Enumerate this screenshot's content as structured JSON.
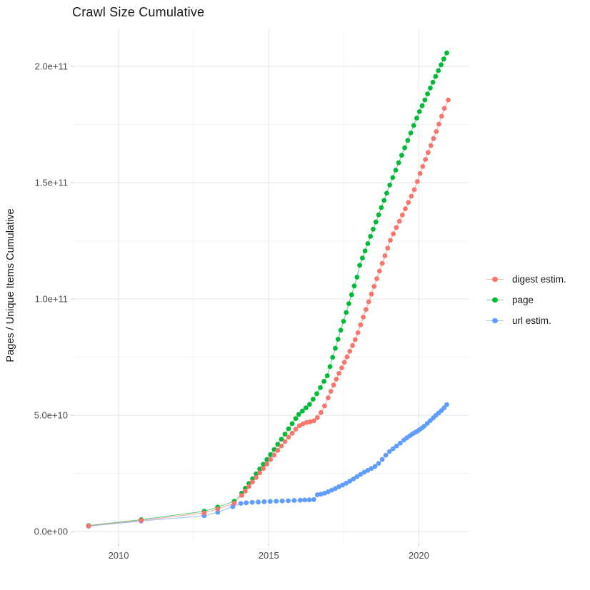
{
  "chart_data": {
    "type": "line",
    "title": "Crawl Size Cumulative",
    "xlabel": "",
    "ylabel": "Pages / Unique Items Cumulative",
    "grid": true,
    "legend_position": "right",
    "value_unit": "1e9 (billions); y tick 5.0e+10 corresponds to value 50",
    "xlim": [
      2008.5,
      2021.68
    ],
    "ylim_e9": [
      -5.2,
      216.3
    ],
    "x_ticks": [
      {
        "value": 2010,
        "label": "2010"
      },
      {
        "value": 2015,
        "label": "2015"
      },
      {
        "value": 2020,
        "label": "2020"
      }
    ],
    "x_minor_ticks": [
      2012.5,
      2017.5
    ],
    "y_ticks": [
      {
        "value_e9": 0,
        "label": "0.0e+00"
      },
      {
        "value_e9": 50,
        "label": "5.0e+10"
      },
      {
        "value_e9": 100,
        "label": "1.0e+11"
      },
      {
        "value_e9": 150,
        "label": "1.5e+11"
      },
      {
        "value_e9": 200,
        "label": "2.0e+11"
      }
    ],
    "y_minor_ticks_e9": [
      25,
      75,
      125,
      175
    ],
    "series": [
      {
        "name": "digest estim.",
        "color": "#F8766D",
        "points": [
          [
            2009.0,
            2.4
          ],
          [
            2010.75,
            4.8
          ],
          [
            2012.85,
            8.0
          ],
          [
            2013.3,
            9.7
          ],
          [
            2013.85,
            12.2
          ],
          [
            2014.1,
            15.5
          ],
          [
            2014.22,
            17.4
          ],
          [
            2014.34,
            19.4
          ],
          [
            2014.46,
            21.3
          ],
          [
            2014.58,
            23.2
          ],
          [
            2014.7,
            25.2
          ],
          [
            2014.82,
            27.1
          ],
          [
            2014.94,
            29.0
          ],
          [
            2015.06,
            31.0
          ],
          [
            2015.18,
            32.9
          ],
          [
            2015.3,
            34.9
          ],
          [
            2015.42,
            36.8
          ],
          [
            2015.54,
            38.7
          ],
          [
            2015.66,
            40.6
          ],
          [
            2015.78,
            42.3
          ],
          [
            2015.9,
            44.0
          ],
          [
            2016.02,
            45.5
          ],
          [
            2016.14,
            46.3
          ],
          [
            2016.26,
            46.9
          ],
          [
            2016.38,
            47.2
          ],
          [
            2016.5,
            47.6
          ],
          [
            2016.62,
            49.0
          ],
          [
            2016.74,
            51.2
          ],
          [
            2016.86,
            54.0
          ],
          [
            2016.98,
            57.5
          ],
          [
            2017.07,
            60.3
          ],
          [
            2017.16,
            63.0
          ],
          [
            2017.25,
            65.5
          ],
          [
            2017.34,
            68.0
          ],
          [
            2017.43,
            70.4
          ],
          [
            2017.52,
            72.8
          ],
          [
            2017.61,
            75.1
          ],
          [
            2017.7,
            77.5
          ],
          [
            2017.79,
            80.0
          ],
          [
            2017.88,
            82.5
          ],
          [
            2017.97,
            85.5
          ],
          [
            2018.06,
            88.9
          ],
          [
            2018.15,
            92.2
          ],
          [
            2018.24,
            95.5
          ],
          [
            2018.33,
            98.8
          ],
          [
            2018.42,
            102.1
          ],
          [
            2018.51,
            105.4
          ],
          [
            2018.6,
            108.7
          ],
          [
            2018.69,
            112.0
          ],
          [
            2018.78,
            115.3
          ],
          [
            2018.87,
            118.6
          ],
          [
            2018.96,
            121.9
          ],
          [
            2019.05,
            125.2
          ],
          [
            2019.15,
            128.0
          ],
          [
            2019.25,
            130.7
          ],
          [
            2019.35,
            133.4
          ],
          [
            2019.45,
            136.1
          ],
          [
            2019.55,
            138.8
          ],
          [
            2019.65,
            141.5
          ],
          [
            2019.75,
            144.2
          ],
          [
            2019.85,
            147.0
          ],
          [
            2019.95,
            150.5
          ],
          [
            2020.04,
            154.0
          ],
          [
            2020.13,
            157.0
          ],
          [
            2020.22,
            160.0
          ],
          [
            2020.31,
            163.0
          ],
          [
            2020.4,
            166.0
          ],
          [
            2020.49,
            169.0
          ],
          [
            2020.58,
            172.0
          ],
          [
            2020.67,
            175.2
          ],
          [
            2020.76,
            178.6
          ],
          [
            2020.85,
            182.0
          ],
          [
            2020.98,
            185.6
          ]
        ]
      },
      {
        "name": "page",
        "color": "#00BA38",
        "points": [
          [
            2009.0,
            2.6
          ],
          [
            2010.75,
            5.1
          ],
          [
            2012.85,
            8.7
          ],
          [
            2013.3,
            10.5
          ],
          [
            2013.85,
            13.0
          ],
          [
            2014.1,
            16.5
          ],
          [
            2014.22,
            18.6
          ],
          [
            2014.34,
            20.7
          ],
          [
            2014.46,
            22.7
          ],
          [
            2014.58,
            24.8
          ],
          [
            2014.7,
            26.9
          ],
          [
            2014.82,
            28.9
          ],
          [
            2014.94,
            31.0
          ],
          [
            2015.06,
            33.1
          ],
          [
            2015.18,
            35.3
          ],
          [
            2015.3,
            37.5
          ],
          [
            2015.42,
            39.7
          ],
          [
            2015.54,
            41.9
          ],
          [
            2015.66,
            44.2
          ],
          [
            2015.78,
            46.4
          ],
          [
            2015.9,
            48.6
          ],
          [
            2016.0,
            50.4
          ],
          [
            2016.12,
            51.8
          ],
          [
            2016.24,
            53.2
          ],
          [
            2016.36,
            54.7
          ],
          [
            2016.48,
            56.9
          ],
          [
            2016.6,
            59.3
          ],
          [
            2016.72,
            61.9
          ],
          [
            2016.84,
            64.6
          ],
          [
            2016.95,
            67.0
          ],
          [
            2017.04,
            70.9
          ],
          [
            2017.13,
            74.9
          ],
          [
            2017.22,
            78.8
          ],
          [
            2017.31,
            82.7
          ],
          [
            2017.4,
            86.6
          ],
          [
            2017.49,
            90.4
          ],
          [
            2017.58,
            94.2
          ],
          [
            2017.67,
            98.0
          ],
          [
            2017.76,
            101.8
          ],
          [
            2017.85,
            105.6
          ],
          [
            2017.94,
            109.4
          ],
          [
            2018.03,
            114.5
          ],
          [
            2018.12,
            117.6
          ],
          [
            2018.21,
            120.7
          ],
          [
            2018.3,
            123.8
          ],
          [
            2018.39,
            126.9
          ],
          [
            2018.48,
            130.0
          ],
          [
            2018.57,
            133.1
          ],
          [
            2018.66,
            136.2
          ],
          [
            2018.75,
            139.3
          ],
          [
            2018.84,
            142.4
          ],
          [
            2018.93,
            145.5
          ],
          [
            2019.03,
            149.0
          ],
          [
            2019.13,
            152.2
          ],
          [
            2019.23,
            155.4
          ],
          [
            2019.33,
            158.6
          ],
          [
            2019.43,
            161.8
          ],
          [
            2019.53,
            165.0
          ],
          [
            2019.63,
            168.2
          ],
          [
            2019.73,
            171.4
          ],
          [
            2019.83,
            174.6
          ],
          [
            2019.93,
            177.8
          ],
          [
            2020.02,
            180.6
          ],
          [
            2020.11,
            183.1
          ],
          [
            2020.2,
            185.6
          ],
          [
            2020.29,
            188.2
          ],
          [
            2020.38,
            190.7
          ],
          [
            2020.47,
            193.2
          ],
          [
            2020.56,
            195.7
          ],
          [
            2020.65,
            198.2
          ],
          [
            2020.74,
            200.7
          ],
          [
            2020.83,
            203.2
          ],
          [
            2020.93,
            205.8
          ]
        ]
      },
      {
        "name": "url estim.",
        "color": "#619CFF",
        "points": [
          [
            2009.0,
            2.3
          ],
          [
            2010.75,
            4.5
          ],
          [
            2012.85,
            6.8
          ],
          [
            2013.3,
            8.3
          ],
          [
            2013.8,
            10.7
          ],
          [
            2014.07,
            12.1
          ],
          [
            2014.25,
            12.35
          ],
          [
            2014.45,
            12.55
          ],
          [
            2014.65,
            12.7
          ],
          [
            2014.85,
            12.85
          ],
          [
            2015.05,
            12.95
          ],
          [
            2015.25,
            13.05
          ],
          [
            2015.45,
            13.15
          ],
          [
            2015.65,
            13.25
          ],
          [
            2015.85,
            13.35
          ],
          [
            2016.05,
            13.45
          ],
          [
            2016.2,
            13.55
          ],
          [
            2016.35,
            13.65
          ],
          [
            2016.5,
            13.75
          ],
          [
            2016.62,
            15.8
          ],
          [
            2016.74,
            16.1
          ],
          [
            2016.86,
            16.5
          ],
          [
            2016.98,
            17.1
          ],
          [
            2017.1,
            17.8
          ],
          [
            2017.22,
            18.5
          ],
          [
            2017.34,
            19.3
          ],
          [
            2017.46,
            20.0
          ],
          [
            2017.58,
            20.8
          ],
          [
            2017.7,
            21.7
          ],
          [
            2017.82,
            22.6
          ],
          [
            2017.94,
            23.6
          ],
          [
            2018.06,
            24.6
          ],
          [
            2018.18,
            25.5
          ],
          [
            2018.3,
            26.3
          ],
          [
            2018.42,
            27.1
          ],
          [
            2018.54,
            28.0
          ],
          [
            2018.66,
            29.3
          ],
          [
            2018.78,
            31.0
          ],
          [
            2018.9,
            32.8
          ],
          [
            2019.02,
            34.4
          ],
          [
            2019.14,
            35.6
          ],
          [
            2019.26,
            36.8
          ],
          [
            2019.38,
            38.0
          ],
          [
            2019.5,
            39.3
          ],
          [
            2019.6,
            40.3
          ],
          [
            2019.7,
            41.2
          ],
          [
            2019.78,
            41.9
          ],
          [
            2019.86,
            42.5
          ],
          [
            2019.94,
            43.1
          ],
          [
            2020.02,
            43.8
          ],
          [
            2020.1,
            44.5
          ],
          [
            2020.18,
            45.3
          ],
          [
            2020.28,
            46.5
          ],
          [
            2020.38,
            47.7
          ],
          [
            2020.48,
            48.9
          ],
          [
            2020.57,
            50.0
          ],
          [
            2020.66,
            51.0
          ],
          [
            2020.75,
            52.0
          ],
          [
            2020.84,
            53.2
          ],
          [
            2020.93,
            54.6
          ]
        ]
      }
    ],
    "style": {
      "grid_major_color": "#e8e8e8",
      "grid_minor_color": "#f3f3f3",
      "tick_mark_color": "#c9c9c9",
      "tick_text_color": "#4d4d4d",
      "title_color": "#1a1a1a",
      "point_radius": 3.4
    }
  }
}
